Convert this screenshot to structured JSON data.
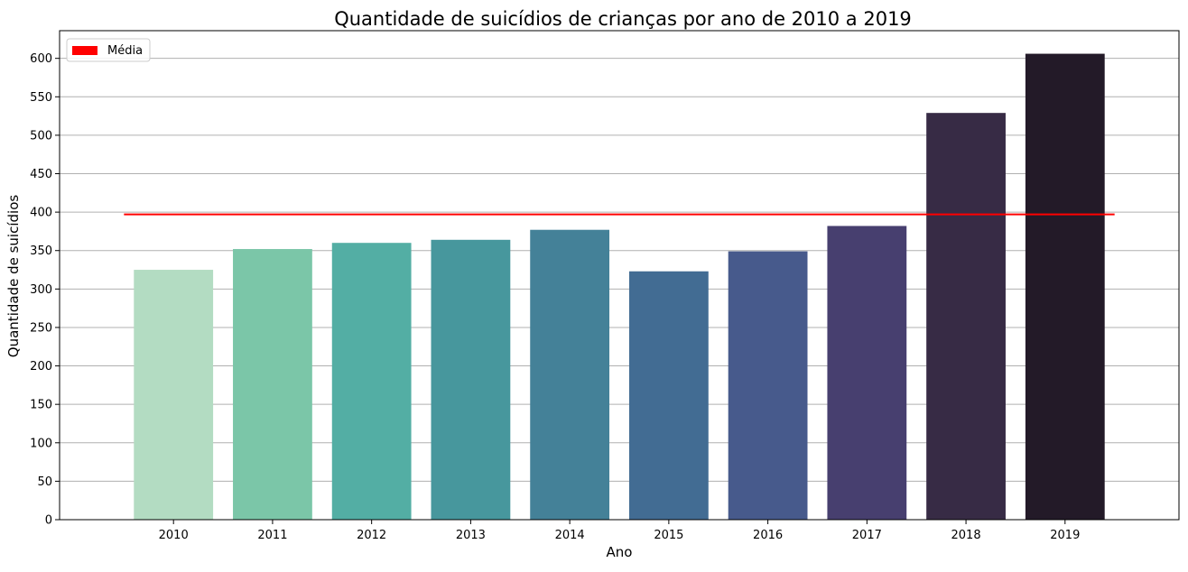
{
  "chart_data": {
    "type": "bar",
    "title": "Quantidade de suicídios de crianças por ano de 2010 a 2019",
    "xlabel": "Ano",
    "ylabel": "Quantidade de suicídios",
    "categories": [
      "2010",
      "2011",
      "2012",
      "2013",
      "2014",
      "2015",
      "2016",
      "2017",
      "2018",
      "2019"
    ],
    "values": [
      325,
      352,
      360,
      364,
      377,
      323,
      349,
      382,
      529,
      606
    ],
    "bar_colors": [
      "#b3dcc2",
      "#7bc6a8",
      "#53aea4",
      "#47979d",
      "#448198",
      "#426c93",
      "#475a8c",
      "#473f6f",
      "#372b45",
      "#231a28"
    ],
    "ylim": [
      0,
      636
    ],
    "yticks": [
      0,
      50,
      100,
      150,
      200,
      250,
      300,
      350,
      400,
      450,
      500,
      550,
      600
    ],
    "grid": "horizontal",
    "mean": {
      "label": "Média",
      "value": 397,
      "color": "#ff0000"
    },
    "legend_position": "top-left"
  }
}
